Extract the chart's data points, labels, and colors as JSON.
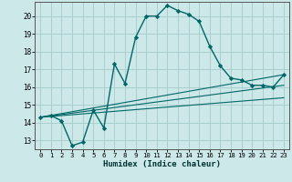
{
  "xlabel": "Humidex (Indice chaleur)",
  "background_color": "#cce8e8",
  "grid_color": "#aacfcf",
  "line_color": "#006666",
  "xlim": [
    -0.5,
    23.5
  ],
  "ylim": [
    12.5,
    20.8
  ],
  "xticks": [
    0,
    1,
    2,
    3,
    4,
    5,
    6,
    7,
    8,
    9,
    10,
    11,
    12,
    13,
    14,
    15,
    16,
    17,
    18,
    19,
    20,
    21,
    22,
    23
  ],
  "yticks": [
    13,
    14,
    15,
    16,
    17,
    18,
    19,
    20
  ],
  "series_main": {
    "x": [
      0,
      1,
      2,
      3,
      4,
      5,
      6,
      7,
      8,
      9,
      10,
      11,
      12,
      13,
      14,
      15,
      16,
      17,
      18,
      19,
      20,
      21,
      22,
      23
    ],
    "y": [
      14.3,
      14.4,
      14.1,
      12.7,
      12.9,
      14.7,
      13.7,
      17.3,
      16.2,
      18.8,
      20.0,
      20.0,
      20.6,
      20.3,
      20.1,
      19.7,
      18.3,
      17.2,
      16.5,
      16.4,
      16.1,
      16.1,
      16.0,
      16.7
    ]
  },
  "series_lines": [
    {
      "x": [
        0,
        23
      ],
      "y": [
        14.3,
        16.7
      ]
    },
    {
      "x": [
        0,
        23
      ],
      "y": [
        14.3,
        16.1
      ]
    },
    {
      "x": [
        0,
        23
      ],
      "y": [
        14.3,
        15.4
      ]
    }
  ]
}
